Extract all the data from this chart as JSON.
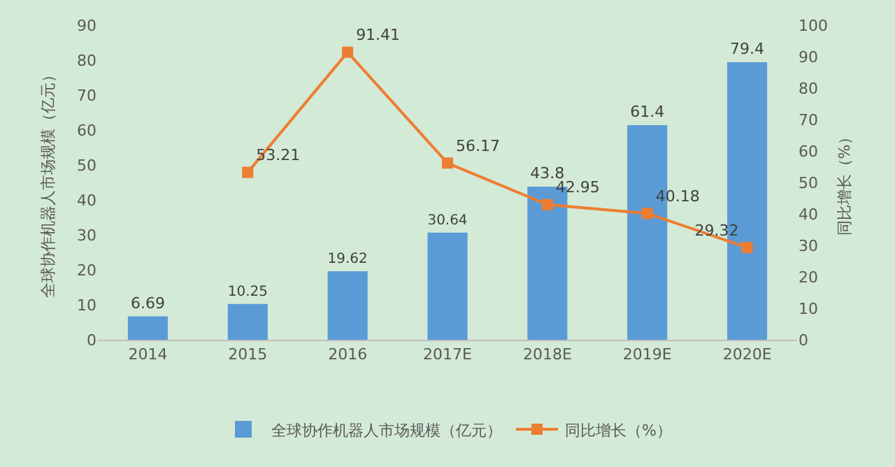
{
  "chart_data": {
    "type": "bar",
    "categories": [
      "2014",
      "2015",
      "2016",
      "2017E",
      "2018E",
      "2019E",
      "2020E"
    ],
    "ylabel": "全球协作机器人市场规模（亿元）",
    "y2label": "同比增长（%）",
    "series": [
      {
        "name": "全球协作机器人市场规模（亿元）",
        "color": "#5b9bd5",
        "values": [
          6.69,
          10.25,
          19.62,
          30.64,
          43.8,
          61.4,
          79.4
        ]
      },
      {
        "name": "同比增长（%）",
        "type": "line",
        "axis": "y2",
        "color": "#ed7d31",
        "values": [
          null,
          53.21,
          91.41,
          56.17,
          42.95,
          40.18,
          29.32
        ]
      }
    ],
    "ylim": [
      0,
      90
    ],
    "yticks": [
      0,
      10,
      20,
      30,
      40,
      50,
      60,
      70,
      80,
      90
    ],
    "y2lim": [
      0,
      100
    ],
    "y2ticks": [
      0,
      10,
      20,
      30,
      40,
      50,
      60,
      70,
      80,
      90,
      100
    ],
    "data_labels": true,
    "grid": false,
    "legend": "bottom",
    "marker": "square",
    "line_style": "solid"
  }
}
